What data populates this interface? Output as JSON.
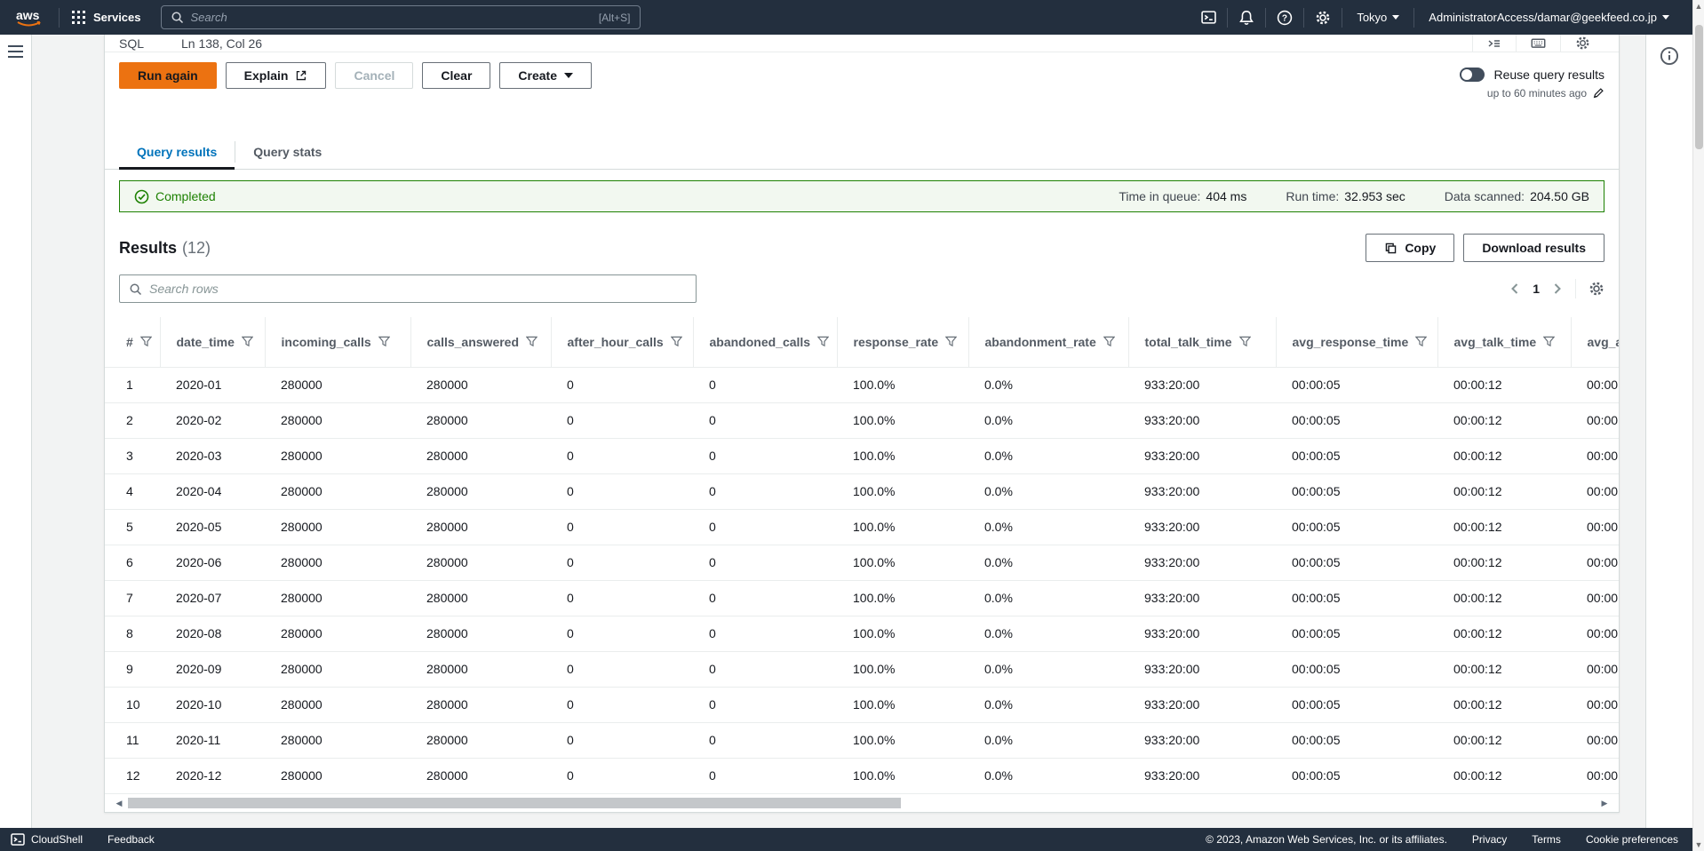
{
  "colors": {
    "nav_bg": "#232f3e",
    "accent_orange": "#ec7211",
    "link_blue": "#0073bb",
    "success_green": "#1d8102",
    "banner_bg": "#f2f8f0"
  },
  "nav": {
    "logo": "aws",
    "services": "Services",
    "search_placeholder": "Search",
    "search_shortcut": "[Alt+S]",
    "region": "Tokyo",
    "account": "AdministratorAccess/damar@geekfeed.co.jp"
  },
  "editor": {
    "mode": "SQL",
    "cursor": "Ln 138, Col 26",
    "run": "Run again",
    "explain": "Explain",
    "cancel": "Cancel",
    "clear": "Clear",
    "create": "Create",
    "reuse_label": "Reuse query results",
    "reuse_sub": "up to 60 minutes ago"
  },
  "tabs": {
    "results": "Query results",
    "stats": "Query stats"
  },
  "banner": {
    "status": "Completed",
    "stats": [
      {
        "label": "Time in queue:",
        "value": "404 ms"
      },
      {
        "label": "Run time:",
        "value": "32.953 sec"
      },
      {
        "label": "Data scanned:",
        "value": "204.50 GB"
      }
    ]
  },
  "results": {
    "title": "Results",
    "count": "(12)",
    "copy": "Copy",
    "download": "Download results",
    "search_placeholder": "Search rows",
    "page": "1"
  },
  "table": {
    "columns": [
      "#",
      "date_time",
      "incoming_calls",
      "calls_answered",
      "after_hour_calls",
      "abandoned_calls",
      "response_rate",
      "abandonment_rate",
      "total_talk_time",
      "avg_response_time",
      "avg_talk_time",
      "avg_a"
    ],
    "rows": [
      [
        "1",
        "2020-01",
        "280000",
        "280000",
        "0",
        "0",
        "100.0%",
        "0.0%",
        "933:20:00",
        "00:00:05",
        "00:00:12",
        "00:00:"
      ],
      [
        "2",
        "2020-02",
        "280000",
        "280000",
        "0",
        "0",
        "100.0%",
        "0.0%",
        "933:20:00",
        "00:00:05",
        "00:00:12",
        "00:00:"
      ],
      [
        "3",
        "2020-03",
        "280000",
        "280000",
        "0",
        "0",
        "100.0%",
        "0.0%",
        "933:20:00",
        "00:00:05",
        "00:00:12",
        "00:00:"
      ],
      [
        "4",
        "2020-04",
        "280000",
        "280000",
        "0",
        "0",
        "100.0%",
        "0.0%",
        "933:20:00",
        "00:00:05",
        "00:00:12",
        "00:00:"
      ],
      [
        "5",
        "2020-05",
        "280000",
        "280000",
        "0",
        "0",
        "100.0%",
        "0.0%",
        "933:20:00",
        "00:00:05",
        "00:00:12",
        "00:00:"
      ],
      [
        "6",
        "2020-06",
        "280000",
        "280000",
        "0",
        "0",
        "100.0%",
        "0.0%",
        "933:20:00",
        "00:00:05",
        "00:00:12",
        "00:00:"
      ],
      [
        "7",
        "2020-07",
        "280000",
        "280000",
        "0",
        "0",
        "100.0%",
        "0.0%",
        "933:20:00",
        "00:00:05",
        "00:00:12",
        "00:00:"
      ],
      [
        "8",
        "2020-08",
        "280000",
        "280000",
        "0",
        "0",
        "100.0%",
        "0.0%",
        "933:20:00",
        "00:00:05",
        "00:00:12",
        "00:00:"
      ],
      [
        "9",
        "2020-09",
        "280000",
        "280000",
        "0",
        "0",
        "100.0%",
        "0.0%",
        "933:20:00",
        "00:00:05",
        "00:00:12",
        "00:00:"
      ],
      [
        "10",
        "2020-10",
        "280000",
        "280000",
        "0",
        "0",
        "100.0%",
        "0.0%",
        "933:20:00",
        "00:00:05",
        "00:00:12",
        "00:00:"
      ],
      [
        "11",
        "2020-11",
        "280000",
        "280000",
        "0",
        "0",
        "100.0%",
        "0.0%",
        "933:20:00",
        "00:00:05",
        "00:00:12",
        "00:00:"
      ],
      [
        "12",
        "2020-12",
        "280000",
        "280000",
        "0",
        "0",
        "100.0%",
        "0.0%",
        "933:20:00",
        "00:00:05",
        "00:00:12",
        "00:00:"
      ]
    ]
  },
  "footer": {
    "cloudshell": "CloudShell",
    "feedback": "Feedback",
    "copyright": "© 2023, Amazon Web Services, Inc. or its affiliates.",
    "links": [
      "Privacy",
      "Terms",
      "Cookie preferences"
    ]
  }
}
